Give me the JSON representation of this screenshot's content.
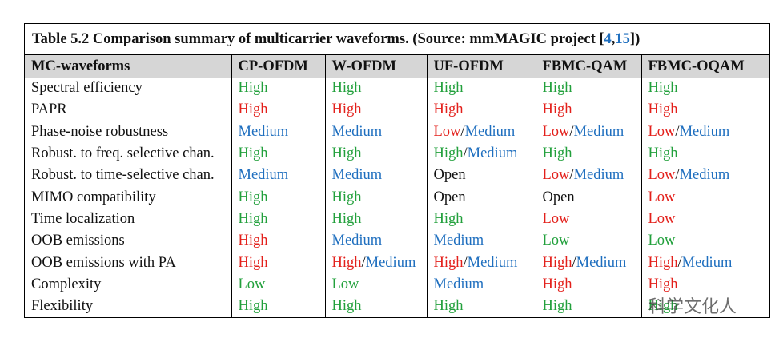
{
  "table": {
    "title": [
      {
        "text": "Table 5.2  Comparison summary of multicarrier waveforms. (Source: mmMAGIC project [",
        "color": "#111111"
      },
      {
        "text": "4",
        "color": "#1f6fbf"
      },
      {
        "text": ",",
        "color": "#111111"
      },
      {
        "text": "15",
        "color": "#1f6fbf"
      },
      {
        "text": "])",
        "color": "#111111"
      }
    ],
    "header": [
      "MC-waveforms",
      "CP-OFDM",
      "W-OFDM",
      "UF-OFDM",
      "FBMC-QAM",
      "FBMC-OQAM"
    ],
    "rows": [
      {
        "label": "Spectral efficiency",
        "cells": [
          [
            {
              "text": "High",
              "color": "#22a03c"
            }
          ],
          [
            {
              "text": "High",
              "color": "#22a03c"
            }
          ],
          [
            {
              "text": "High",
              "color": "#22a03c"
            }
          ],
          [
            {
              "text": "High",
              "color": "#22a03c"
            }
          ],
          [
            {
              "text": "High",
              "color": "#22a03c"
            }
          ]
        ]
      },
      {
        "label": "PAPR",
        "cells": [
          [
            {
              "text": "High",
              "color": "#e3201b"
            }
          ],
          [
            {
              "text": "High",
              "color": "#e3201b"
            }
          ],
          [
            {
              "text": "High",
              "color": "#e3201b"
            }
          ],
          [
            {
              "text": "High",
              "color": "#e3201b"
            }
          ],
          [
            {
              "text": "High",
              "color": "#e3201b"
            }
          ]
        ]
      },
      {
        "label": "Phase-noise robustness",
        "cells": [
          [
            {
              "text": "Medium",
              "color": "#1f6fbf"
            }
          ],
          [
            {
              "text": "Medium",
              "color": "#1f6fbf"
            }
          ],
          [
            {
              "text": "Low",
              "color": "#e3201b"
            },
            {
              "text": "/",
              "color": "#111111"
            },
            {
              "text": "Medium",
              "color": "#1f6fbf"
            }
          ],
          [
            {
              "text": "Low",
              "color": "#e3201b"
            },
            {
              "text": "/",
              "color": "#111111"
            },
            {
              "text": "Medium",
              "color": "#1f6fbf"
            }
          ],
          [
            {
              "text": "Low",
              "color": "#e3201b"
            },
            {
              "text": "/",
              "color": "#111111"
            },
            {
              "text": "Medium",
              "color": "#1f6fbf"
            }
          ]
        ]
      },
      {
        "label": "Robust. to freq. selective chan.",
        "cells": [
          [
            {
              "text": "High",
              "color": "#22a03c"
            }
          ],
          [
            {
              "text": "High",
              "color": "#22a03c"
            }
          ],
          [
            {
              "text": "High",
              "color": "#22a03c"
            },
            {
              "text": "/",
              "color": "#111111"
            },
            {
              "text": "Medium",
              "color": "#1f6fbf"
            }
          ],
          [
            {
              "text": "High",
              "color": "#22a03c"
            }
          ],
          [
            {
              "text": "High",
              "color": "#22a03c"
            }
          ]
        ]
      },
      {
        "label": "Robust. to time-selective chan.",
        "cells": [
          [
            {
              "text": "Medium",
              "color": "#1f6fbf"
            }
          ],
          [
            {
              "text": "Medium",
              "color": "#1f6fbf"
            }
          ],
          [
            {
              "text": "Open",
              "color": "#111111"
            }
          ],
          [
            {
              "text": "Low",
              "color": "#e3201b"
            },
            {
              "text": "/",
              "color": "#111111"
            },
            {
              "text": "Medium",
              "color": "#1f6fbf"
            }
          ],
          [
            {
              "text": "Low",
              "color": "#e3201b"
            },
            {
              "text": "/",
              "color": "#111111"
            },
            {
              "text": "Medium",
              "color": "#1f6fbf"
            }
          ]
        ]
      },
      {
        "label": "MIMO compatibility",
        "cells": [
          [
            {
              "text": "High",
              "color": "#22a03c"
            }
          ],
          [
            {
              "text": "High",
              "color": "#22a03c"
            }
          ],
          [
            {
              "text": "Open",
              "color": "#111111"
            }
          ],
          [
            {
              "text": "Open",
              "color": "#111111"
            }
          ],
          [
            {
              "text": "Low",
              "color": "#e3201b"
            }
          ]
        ]
      },
      {
        "label": "Time localization",
        "cells": [
          [
            {
              "text": "High",
              "color": "#22a03c"
            }
          ],
          [
            {
              "text": "High",
              "color": "#22a03c"
            }
          ],
          [
            {
              "text": "High",
              "color": "#22a03c"
            }
          ],
          [
            {
              "text": "Low",
              "color": "#e3201b"
            }
          ],
          [
            {
              "text": "Low",
              "color": "#e3201b"
            }
          ]
        ]
      },
      {
        "label": "OOB emissions",
        "cells": [
          [
            {
              "text": "High",
              "color": "#e3201b"
            }
          ],
          [
            {
              "text": "Medium",
              "color": "#1f6fbf"
            }
          ],
          [
            {
              "text": "Medium",
              "color": "#1f6fbf"
            }
          ],
          [
            {
              "text": "Low",
              "color": "#22a03c"
            }
          ],
          [
            {
              "text": "Low",
              "color": "#22a03c"
            }
          ]
        ]
      },
      {
        "label": "OOB emissions with PA",
        "cells": [
          [
            {
              "text": "High",
              "color": "#e3201b"
            }
          ],
          [
            {
              "text": "High",
              "color": "#e3201b"
            },
            {
              "text": "/",
              "color": "#111111"
            },
            {
              "text": "Medium",
              "color": "#1f6fbf"
            }
          ],
          [
            {
              "text": "High",
              "color": "#e3201b"
            },
            {
              "text": "/",
              "color": "#111111"
            },
            {
              "text": "Medium",
              "color": "#1f6fbf"
            }
          ],
          [
            {
              "text": "High",
              "color": "#e3201b"
            },
            {
              "text": "/",
              "color": "#111111"
            },
            {
              "text": "Medium",
              "color": "#1f6fbf"
            }
          ],
          [
            {
              "text": "High",
              "color": "#e3201b"
            },
            {
              "text": "/",
              "color": "#111111"
            },
            {
              "text": "Medium",
              "color": "#1f6fbf"
            }
          ]
        ]
      },
      {
        "label": "Complexity",
        "cells": [
          [
            {
              "text": "Low",
              "color": "#22a03c"
            }
          ],
          [
            {
              "text": "Low",
              "color": "#22a03c"
            }
          ],
          [
            {
              "text": "Medium",
              "color": "#1f6fbf"
            }
          ],
          [
            {
              "text": "High",
              "color": "#e3201b"
            }
          ],
          [
            {
              "text": "High",
              "color": "#e3201b"
            }
          ]
        ]
      },
      {
        "label": "Flexibility",
        "cells": [
          [
            {
              "text": "High",
              "color": "#22a03c"
            }
          ],
          [
            {
              "text": "High",
              "color": "#22a03c"
            }
          ],
          [
            {
              "text": "High",
              "color": "#22a03c"
            }
          ],
          [
            {
              "text": "High",
              "color": "#22a03c"
            }
          ],
          [
            {
              "text": "High",
              "color": "#22a03c"
            }
          ]
        ]
      }
    ]
  },
  "watermark": "科学文化人"
}
